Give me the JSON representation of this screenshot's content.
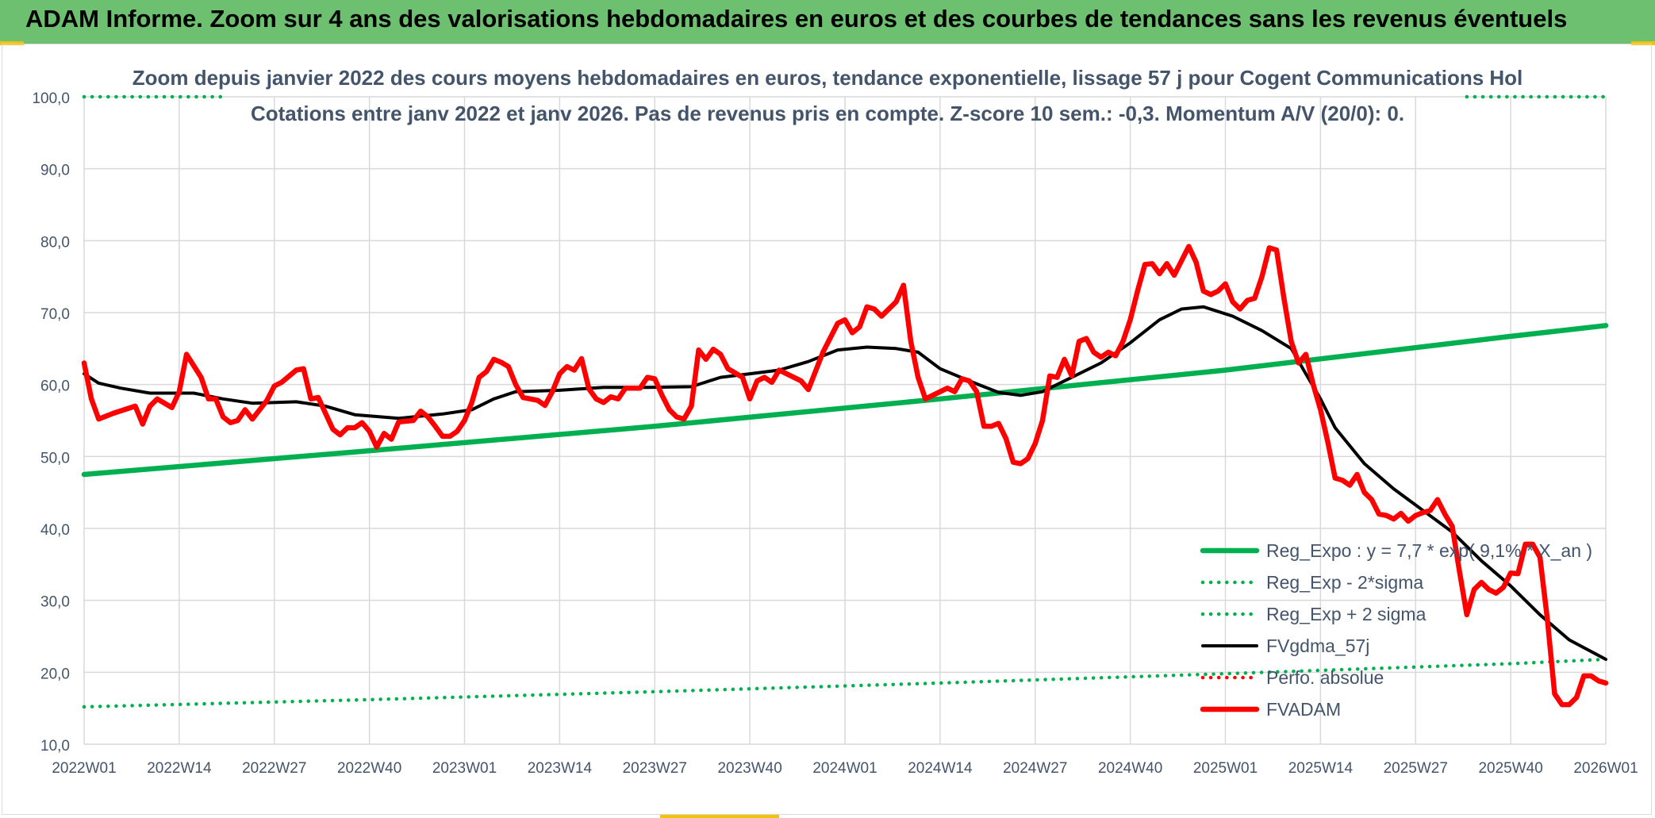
{
  "banner": {
    "title": "ADAM Informe. Zoom sur 4 ans des valorisations hebdomadaires en euros et des courbes de tendances sans les revenus éventuels"
  },
  "colors": {
    "banner": "#6cc070",
    "green": "#00b050",
    "red": "#ff0000",
    "black": "#000000",
    "grid": "#d9d9d9",
    "text": "#44546a",
    "accent": "#f2c200"
  },
  "chart_data": {
    "type": "line",
    "title": "Zoom depuis janvier 2022 des cours moyens hebdomadaires en euros, tendance exponentielle, lissage 57 j pour Cogent Communications Hol",
    "subtitle": "Cotations entre janv 2022 et janv 2026. Pas de revenus pris en compte. Z-score 10 sem.: -0,3. Momentum A/V (20/0): 0.",
    "xlabel": "",
    "ylabel": "",
    "ylim": [
      10,
      100
    ],
    "x_range": [
      1,
      209
    ],
    "grid": true,
    "y_tick_labels": [
      "10,0",
      "20,0",
      "30,0",
      "40,0",
      "50,0",
      "60,0",
      "70,0",
      "80,0",
      "90,0",
      "100,0"
    ],
    "x_ticks": [
      {
        "label": "2022W01",
        "x": 1
      },
      {
        "label": "2022W14",
        "x": 14
      },
      {
        "label": "2022W27",
        "x": 27
      },
      {
        "label": "2022W40",
        "x": 40
      },
      {
        "label": "2023W01",
        "x": 53
      },
      {
        "label": "2023W14",
        "x": 66
      },
      {
        "label": "2023W27",
        "x": 79
      },
      {
        "label": "2023W40",
        "x": 92
      },
      {
        "label": "2024W01",
        "x": 105
      },
      {
        "label": "2024W14",
        "x": 118
      },
      {
        "label": "2024W27",
        "x": 131
      },
      {
        "label": "2024W40",
        "x": 144
      },
      {
        "label": "2025W01",
        "x": 157
      },
      {
        "label": "2025W14",
        "x": 170
      },
      {
        "label": "2025W27",
        "x": 183
      },
      {
        "label": "2025W40",
        "x": 196
      },
      {
        "label": "2026W01",
        "x": 209
      }
    ],
    "legend_position": "bottom-right",
    "series": [
      {
        "name": "Reg_Expo : y = 7,7 * exp( 9,1% * X_an )",
        "style": "solid-thick",
        "color": "#00b050",
        "points": [
          [
            1,
            47.5
          ],
          [
            40,
            50.8
          ],
          [
            79,
            54.2
          ],
          [
            118,
            58.0
          ],
          [
            157,
            62.0
          ],
          [
            196,
            66.7
          ],
          [
            209,
            68.2
          ]
        ]
      },
      {
        "name": "Reg_Exp - 2*sigma",
        "style": "dotted",
        "color": "#00b050",
        "points": [
          [
            1,
            15.2
          ],
          [
            40,
            16.2
          ],
          [
            79,
            17.3
          ],
          [
            118,
            18.5
          ],
          [
            157,
            19.8
          ],
          [
            196,
            21.2
          ],
          [
            209,
            21.8
          ]
        ]
      },
      {
        "name": "Reg_Exp + 2 sigma",
        "style": "dotted",
        "color": "#00b050",
        "points": [
          [
            1,
            100
          ],
          [
            20,
            100
          ]
        ],
        "points_2": [
          [
            190,
            100
          ],
          [
            209,
            100
          ]
        ]
      },
      {
        "name": "FVgdma_57j",
        "style": "solid",
        "color": "#000000",
        "points": [
          [
            1,
            61.5
          ],
          [
            3,
            60.2
          ],
          [
            6,
            59.5
          ],
          [
            10,
            58.8
          ],
          [
            16,
            58.8
          ],
          [
            20,
            58.0
          ],
          [
            24,
            57.4
          ],
          [
            30,
            57.6
          ],
          [
            34,
            57.0
          ],
          [
            38,
            55.8
          ],
          [
            44,
            55.3
          ],
          [
            50,
            55.9
          ],
          [
            54,
            56.5
          ],
          [
            57,
            58.0
          ],
          [
            60,
            59.0
          ],
          [
            66,
            59.2
          ],
          [
            72,
            59.6
          ],
          [
            78,
            59.6
          ],
          [
            84,
            59.7
          ],
          [
            88,
            61.0
          ],
          [
            92,
            61.5
          ],
          [
            96,
            62.0
          ],
          [
            100,
            63.2
          ],
          [
            104,
            64.8
          ],
          [
            108,
            65.2
          ],
          [
            112,
            65.0
          ],
          [
            115,
            64.5
          ],
          [
            118,
            62.2
          ],
          [
            122,
            60.5
          ],
          [
            126,
            58.9
          ],
          [
            129,
            58.5
          ],
          [
            132,
            59.0
          ],
          [
            136,
            61.0
          ],
          [
            140,
            63.0
          ],
          [
            144,
            65.8
          ],
          [
            148,
            69.0
          ],
          [
            151,
            70.5
          ],
          [
            154,
            70.8
          ],
          [
            158,
            69.5
          ],
          [
            162,
            67.5
          ],
          [
            166,
            65.0
          ],
          [
            168,
            61.5
          ],
          [
            170,
            58.0
          ],
          [
            172,
            54.0
          ],
          [
            176,
            49.0
          ],
          [
            180,
            45.5
          ],
          [
            184,
            42.5
          ],
          [
            188,
            39.5
          ],
          [
            192,
            35.5
          ],
          [
            196,
            32.0
          ],
          [
            200,
            28.0
          ],
          [
            204,
            24.5
          ],
          [
            209,
            21.8
          ]
        ]
      },
      {
        "name": "Perfo. absolue",
        "style": "dotted",
        "color": "#ff0000",
        "points": []
      },
      {
        "name": "FVADAM",
        "style": "solid-thick",
        "color": "#ff0000",
        "points": [
          [
            1,
            63
          ],
          [
            2,
            58
          ],
          [
            3,
            55.2
          ],
          [
            5,
            56
          ],
          [
            8,
            57
          ],
          [
            9,
            54.5
          ],
          [
            10,
            57
          ],
          [
            11,
            58
          ],
          [
            13,
            56.8
          ],
          [
            14,
            59
          ],
          [
            15,
            64.2
          ],
          [
            17,
            61
          ],
          [
            18,
            58
          ],
          [
            19,
            58
          ],
          [
            20,
            55.5
          ],
          [
            21,
            54.7
          ],
          [
            22,
            55
          ],
          [
            23,
            56.5
          ],
          [
            24,
            55.2
          ],
          [
            26,
            57.8
          ],
          [
            27,
            59.8
          ],
          [
            28,
            60.3
          ],
          [
            30,
            62
          ],
          [
            31,
            62.2
          ],
          [
            32,
            58
          ],
          [
            33,
            58.2
          ],
          [
            35,
            53.8
          ],
          [
            36,
            53
          ],
          [
            37,
            54
          ],
          [
            38,
            54
          ],
          [
            39,
            54.7
          ],
          [
            40,
            53.5
          ],
          [
            41,
            51.3
          ],
          [
            42,
            53.2
          ],
          [
            43,
            52.4
          ],
          [
            44,
            54.8
          ],
          [
            46,
            55
          ],
          [
            47,
            56.3
          ],
          [
            48,
            55.5
          ],
          [
            49,
            54.2
          ],
          [
            50,
            52.8
          ],
          [
            51,
            52.8
          ],
          [
            52,
            53.5
          ],
          [
            53,
            55
          ],
          [
            54,
            57.5
          ],
          [
            55,
            61
          ],
          [
            56,
            61.8
          ],
          [
            57,
            63.5
          ],
          [
            58,
            63.1
          ],
          [
            59,
            62.5
          ],
          [
            60,
            60
          ],
          [
            61,
            58.2
          ],
          [
            62,
            58
          ],
          [
            63,
            57.8
          ],
          [
            64,
            57.1
          ],
          [
            65,
            59
          ],
          [
            66,
            61.5
          ],
          [
            67,
            62.5
          ],
          [
            68,
            62
          ],
          [
            69,
            63.6
          ],
          [
            70,
            59.4
          ],
          [
            71,
            58
          ],
          [
            72,
            57.5
          ],
          [
            73,
            58.3
          ],
          [
            74,
            58
          ],
          [
            75,
            59.5
          ],
          [
            77,
            59.5
          ],
          [
            78,
            61
          ],
          [
            79,
            60.8
          ],
          [
            80,
            58.5
          ],
          [
            81,
            56.5
          ],
          [
            82,
            55.5
          ],
          [
            83,
            55.2
          ],
          [
            84,
            57
          ],
          [
            85,
            64.8
          ],
          [
            86,
            63.5
          ],
          [
            87,
            64.9
          ],
          [
            88,
            64.2
          ],
          [
            89,
            62.2
          ],
          [
            91,
            61
          ],
          [
            92,
            58
          ],
          [
            93,
            60.5
          ],
          [
            94,
            61
          ],
          [
            95,
            60.3
          ],
          [
            96,
            62
          ],
          [
            98,
            61
          ],
          [
            99,
            60.5
          ],
          [
            100,
            59.3
          ],
          [
            102,
            64.5
          ],
          [
            104,
            68.5
          ],
          [
            105,
            69
          ],
          [
            106,
            67.2
          ],
          [
            107,
            68
          ],
          [
            108,
            70.8
          ],
          [
            109,
            70.5
          ],
          [
            110,
            69.5
          ],
          [
            112,
            71.5
          ],
          [
            113,
            73.8
          ],
          [
            114,
            66
          ],
          [
            115,
            61
          ],
          [
            116,
            58
          ],
          [
            118,
            59
          ],
          [
            119,
            59.5
          ],
          [
            120,
            59
          ],
          [
            121,
            60.8
          ],
          [
            122,
            60.5
          ],
          [
            123,
            59
          ],
          [
            124,
            54.2
          ],
          [
            125,
            54.2
          ],
          [
            126,
            54.6
          ],
          [
            127,
            52.5
          ],
          [
            128,
            49.2
          ],
          [
            129,
            49
          ],
          [
            130,
            49.7
          ],
          [
            131,
            51.8
          ],
          [
            132,
            55
          ],
          [
            133,
            61.2
          ],
          [
            134,
            61
          ],
          [
            135,
            63.5
          ],
          [
            136,
            61.2
          ],
          [
            137,
            66
          ],
          [
            138,
            66.4
          ],
          [
            139,
            64.5
          ],
          [
            140,
            63.8
          ],
          [
            141,
            64.5
          ],
          [
            142,
            64
          ],
          [
            143,
            66
          ],
          [
            144,
            69
          ],
          [
            145,
            73
          ],
          [
            146,
            76.7
          ],
          [
            147,
            76.8
          ],
          [
            148,
            75.4
          ],
          [
            149,
            76.8
          ],
          [
            150,
            75.2
          ],
          [
            151,
            77.2
          ],
          [
            152,
            79.2
          ],
          [
            153,
            77
          ],
          [
            154,
            73
          ],
          [
            155,
            72.5
          ],
          [
            156,
            73
          ],
          [
            157,
            74
          ],
          [
            158,
            71.5
          ],
          [
            159,
            70.5
          ],
          [
            160,
            71.7
          ],
          [
            161,
            72
          ],
          [
            162,
            75
          ],
          [
            163,
            79
          ],
          [
            164,
            78.7
          ],
          [
            165,
            72
          ],
          [
            166,
            66
          ],
          [
            167,
            63
          ],
          [
            168,
            64.2
          ],
          [
            169,
            60
          ],
          [
            170,
            56.5
          ],
          [
            171,
            52
          ],
          [
            172,
            47
          ],
          [
            173,
            46.7
          ],
          [
            174,
            46
          ],
          [
            175,
            47.5
          ],
          [
            176,
            45
          ],
          [
            177,
            44
          ],
          [
            178,
            42
          ],
          [
            179,
            41.8
          ],
          [
            180,
            41.3
          ],
          [
            181,
            42.1
          ],
          [
            182,
            41
          ],
          [
            183,
            41.8
          ],
          [
            184,
            42.2
          ],
          [
            185,
            42.5
          ],
          [
            186,
            44
          ],
          [
            187,
            42
          ],
          [
            188,
            40.3
          ],
          [
            189,
            34
          ],
          [
            190,
            28
          ],
          [
            191,
            31.5
          ],
          [
            192,
            32.5
          ],
          [
            193,
            31.5
          ],
          [
            194,
            31
          ],
          [
            195,
            31.8
          ],
          [
            196,
            33.8
          ],
          [
            197,
            33.7
          ],
          [
            198,
            37.8
          ],
          [
            199,
            37.8
          ],
          [
            200,
            36
          ],
          [
            201,
            27.5
          ],
          [
            202,
            17
          ],
          [
            203,
            15.5
          ],
          [
            204,
            15.5
          ],
          [
            205,
            16.5
          ],
          [
            206,
            19.5
          ],
          [
            207,
            19.5
          ],
          [
            208,
            18.8
          ],
          [
            209,
            18.5
          ]
        ]
      }
    ]
  }
}
